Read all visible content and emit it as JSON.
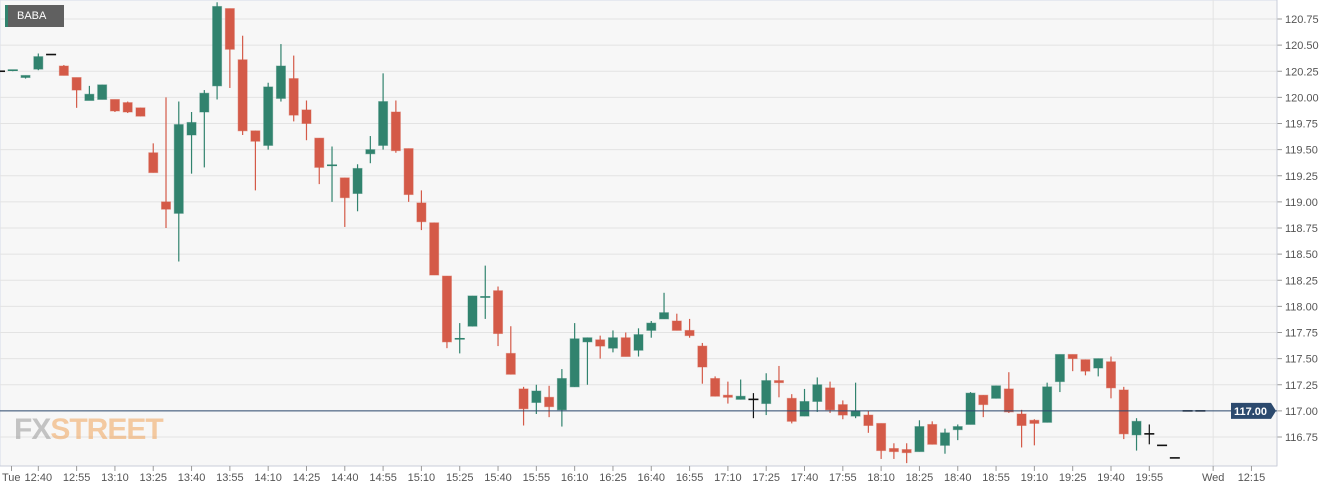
{
  "symbol": "BABA",
  "watermark": {
    "part1": "FX",
    "part2": "STREET"
  },
  "colors": {
    "up": "#31836e",
    "down": "#d45a48",
    "flat": "#111111",
    "grid": "#e3e3e3",
    "background": "#f7f7f7",
    "price_line": "#2c4a6e"
  },
  "chart_data": {
    "type": "candlestick",
    "title": "BABA",
    "interval_minutes": 5,
    "ylim": [
      116.45,
      120.95
    ],
    "grid": true,
    "current_price": 117.0,
    "current_price_label": "117.00",
    "y_ticks": [
      "116.75",
      "117.00",
      "117.25",
      "117.50",
      "117.75",
      "118.00",
      "118.25",
      "118.50",
      "118.75",
      "119.00",
      "119.25",
      "119.50",
      "119.75",
      "120.00",
      "120.25",
      "120.50",
      "120.75"
    ],
    "x_ticks": [
      {
        "label": "Tue",
        "index": 0.9
      },
      {
        "label": "12:40",
        "index": 3
      },
      {
        "label": "12:55",
        "index": 6
      },
      {
        "label": "13:10",
        "index": 9
      },
      {
        "label": "13:25",
        "index": 12
      },
      {
        "label": "13:40",
        "index": 15
      },
      {
        "label": "13:55",
        "index": 18
      },
      {
        "label": "14:10",
        "index": 21
      },
      {
        "label": "14:25",
        "index": 24
      },
      {
        "label": "14:40",
        "index": 27
      },
      {
        "label": "14:55",
        "index": 30
      },
      {
        "label": "15:10",
        "index": 33
      },
      {
        "label": "15:25",
        "index": 36
      },
      {
        "label": "15:40",
        "index": 39
      },
      {
        "label": "15:55",
        "index": 42
      },
      {
        "label": "16:10",
        "index": 45
      },
      {
        "label": "16:25",
        "index": 48
      },
      {
        "label": "16:40",
        "index": 51
      },
      {
        "label": "16:55",
        "index": 54
      },
      {
        "label": "17:10",
        "index": 57
      },
      {
        "label": "17:25",
        "index": 60
      },
      {
        "label": "17:40",
        "index": 63
      },
      {
        "label": "17:55",
        "index": 66
      },
      {
        "label": "18:10",
        "index": 69
      },
      {
        "label": "18:25",
        "index": 72
      },
      {
        "label": "18:40",
        "index": 75
      },
      {
        "label": "18:55",
        "index": 78
      },
      {
        "label": "19:10",
        "index": 81
      },
      {
        "label": "19:25",
        "index": 84
      },
      {
        "label": "19:40",
        "index": 87
      },
      {
        "label": "19:55",
        "index": 90
      },
      {
        "label": "Wed",
        "index": 95
      },
      {
        "label": "12:15",
        "index": 98
      }
    ],
    "candle_fields": [
      "time",
      "open",
      "high",
      "low",
      "close"
    ],
    "candles": [
      [
        "12:25",
        120.25,
        120.25,
        120.25,
        120.25
      ],
      [
        "12:30",
        120.25,
        120.26,
        120.25,
        120.26
      ],
      [
        "12:35",
        120.19,
        120.21,
        120.18,
        120.21
      ],
      [
        "12:40",
        120.27,
        120.42,
        120.26,
        120.39
      ],
      [
        "12:45",
        120.41,
        120.41,
        120.41,
        120.41
      ],
      [
        "12:50",
        120.3,
        120.31,
        120.21,
        120.21
      ],
      [
        "12:55",
        120.19,
        120.19,
        119.9,
        120.07
      ],
      [
        "13:00",
        119.97,
        120.11,
        119.97,
        120.03
      ],
      [
        "13:05",
        119.98,
        120.12,
        119.98,
        120.12
      ],
      [
        "13:10",
        119.98,
        119.98,
        119.86,
        119.87
      ],
      [
        "13:15",
        119.95,
        119.96,
        119.85,
        119.86
      ],
      [
        "13:20",
        119.9,
        119.9,
        119.82,
        119.82
      ],
      [
        "13:25",
        119.47,
        119.56,
        119.28,
        119.28
      ],
      [
        "13:30",
        119.0,
        120.0,
        118.75,
        118.93
      ],
      [
        "13:35",
        118.89,
        119.96,
        118.43,
        119.74
      ],
      [
        "13:40",
        119.64,
        119.86,
        119.27,
        119.76
      ],
      [
        "13:45",
        119.86,
        120.07,
        119.33,
        120.04
      ],
      [
        "13:50",
        120.11,
        120.91,
        119.98,
        120.87
      ],
      [
        "13:55",
        120.85,
        120.85,
        120.09,
        120.46
      ],
      [
        "14:00",
        120.36,
        120.59,
        119.64,
        119.68
      ],
      [
        "14:05",
        119.68,
        119.68,
        119.11,
        119.58
      ],
      [
        "14:10",
        119.54,
        120.14,
        119.5,
        120.1
      ],
      [
        "14:15",
        119.99,
        120.51,
        119.96,
        120.3
      ],
      [
        "14:20",
        120.18,
        120.4,
        119.77,
        119.83
      ],
      [
        "14:25",
        119.88,
        119.97,
        119.59,
        119.75
      ],
      [
        "14:30",
        119.61,
        119.61,
        119.17,
        119.33
      ],
      [
        "14:35",
        119.34,
        119.53,
        119.0,
        119.35
      ],
      [
        "14:40",
        119.23,
        119.23,
        118.76,
        119.04
      ],
      [
        "14:45",
        119.08,
        119.36,
        118.91,
        119.32
      ],
      [
        "14:50",
        119.46,
        119.63,
        119.37,
        119.5
      ],
      [
        "14:55",
        119.54,
        120.23,
        119.5,
        119.96
      ],
      [
        "15:00",
        119.86,
        119.97,
        119.47,
        119.49
      ],
      [
        "15:05",
        119.51,
        119.51,
        119.0,
        119.07
      ],
      [
        "15:10",
        118.99,
        119.11,
        118.73,
        118.81
      ],
      [
        "15:15",
        118.8,
        118.8,
        118.3,
        118.3
      ],
      [
        "15:20",
        118.29,
        118.29,
        117.6,
        117.66
      ],
      [
        "15:25",
        117.68,
        117.84,
        117.55,
        117.69
      ],
      [
        "15:30",
        117.81,
        118.1,
        117.81,
        118.1
      ],
      [
        "15:35",
        118.08,
        118.39,
        117.88,
        118.09
      ],
      [
        "15:40",
        118.15,
        118.19,
        117.62,
        117.74
      ],
      [
        "15:45",
        117.55,
        117.81,
        117.35,
        117.35
      ],
      [
        "15:50",
        117.21,
        117.23,
        116.86,
        117.02
      ],
      [
        "15:55",
        117.08,
        117.25,
        116.97,
        117.19
      ],
      [
        "16:00",
        117.13,
        117.24,
        116.94,
        117.04
      ],
      [
        "16:05",
        117.01,
        117.4,
        116.85,
        117.31
      ],
      [
        "16:10",
        117.23,
        117.84,
        117.23,
        117.69
      ],
      [
        "16:15",
        117.66,
        117.7,
        117.25,
        117.7
      ],
      [
        "16:20",
        117.68,
        117.72,
        117.5,
        117.62
      ],
      [
        "16:25",
        117.6,
        117.77,
        117.56,
        117.7
      ],
      [
        "16:30",
        117.7,
        117.75,
        117.52,
        117.52
      ],
      [
        "16:35",
        117.58,
        117.79,
        117.52,
        117.73
      ],
      [
        "16:40",
        117.77,
        117.86,
        117.7,
        117.84
      ],
      [
        "16:45",
        117.88,
        118.13,
        117.88,
        117.94
      ],
      [
        "16:50",
        117.86,
        117.93,
        117.77,
        117.77
      ],
      [
        "16:55",
        117.77,
        117.88,
        117.7,
        117.72
      ],
      [
        "17:00",
        117.62,
        117.65,
        117.26,
        117.42
      ],
      [
        "17:05",
        117.31,
        117.33,
        117.14,
        117.14
      ],
      [
        "17:10",
        117.15,
        117.28,
        117.07,
        117.13
      ],
      [
        "17:15",
        117.11,
        117.3,
        117.11,
        117.14
      ],
      [
        "17:20",
        117.11,
        117.17,
        116.93,
        117.11
      ],
      [
        "17:25",
        117.07,
        117.36,
        116.96,
        117.29
      ],
      [
        "17:30",
        117.29,
        117.43,
        117.13,
        117.27
      ],
      [
        "17:35",
        117.12,
        117.16,
        116.88,
        116.9
      ],
      [
        "17:40",
        116.95,
        117.21,
        116.95,
        117.09
      ],
      [
        "17:45",
        117.09,
        117.32,
        116.99,
        117.25
      ],
      [
        "17:50",
        117.22,
        117.28,
        116.98,
        117.01
      ],
      [
        "17:55",
        117.06,
        117.1,
        116.92,
        116.96
      ],
      [
        "18:00",
        116.95,
        117.27,
        116.93,
        117.0
      ],
      [
        "18:05",
        116.96,
        117.0,
        116.79,
        116.86
      ],
      [
        "18:10",
        116.88,
        116.88,
        116.54,
        116.62
      ],
      [
        "18:15",
        116.64,
        116.69,
        116.54,
        116.61
      ],
      [
        "18:20",
        116.63,
        116.69,
        116.5,
        116.6
      ],
      [
        "18:25",
        116.61,
        116.91,
        116.61,
        116.85
      ],
      [
        "18:30",
        116.87,
        116.9,
        116.68,
        116.68
      ],
      [
        "18:35",
        116.67,
        116.83,
        116.59,
        116.79
      ],
      [
        "18:40",
        116.82,
        116.87,
        116.72,
        116.85
      ],
      [
        "18:45",
        116.87,
        117.18,
        116.87,
        117.17
      ],
      [
        "18:50",
        117.15,
        117.15,
        116.94,
        117.06
      ],
      [
        "18:55",
        117.12,
        117.24,
        117.12,
        117.24
      ],
      [
        "19:00",
        117.21,
        117.37,
        116.98,
        116.99
      ],
      [
        "19:05",
        116.97,
        117.01,
        116.65,
        116.86
      ],
      [
        "19:10",
        116.91,
        116.92,
        116.67,
        116.88
      ],
      [
        "19:15",
        116.89,
        117.27,
        116.89,
        117.23
      ],
      [
        "19:20",
        117.28,
        117.54,
        117.18,
        117.54
      ],
      [
        "19:25",
        117.54,
        117.54,
        117.38,
        117.5
      ],
      [
        "19:30",
        117.49,
        117.49,
        117.34,
        117.38
      ],
      [
        "19:35",
        117.41,
        117.5,
        117.33,
        117.5
      ],
      [
        "19:40",
        117.47,
        117.52,
        117.12,
        117.22
      ],
      [
        "19:45",
        117.2,
        117.23,
        116.73,
        116.78
      ],
      [
        "19:50",
        116.77,
        116.93,
        116.62,
        116.9
      ],
      [
        "19:55",
        116.78,
        116.87,
        116.68,
        116.78
      ],
      [
        "20:00",
        116.67,
        116.67,
        116.67,
        116.67
      ],
      [
        "20:05",
        116.55,
        116.55,
        116.55,
        116.55
      ],
      [
        "20:10",
        117.0,
        117.0,
        117.0,
        117.0
      ],
      [
        "20:15",
        117.0,
        117.0,
        117.0,
        117.0
      ]
    ]
  }
}
